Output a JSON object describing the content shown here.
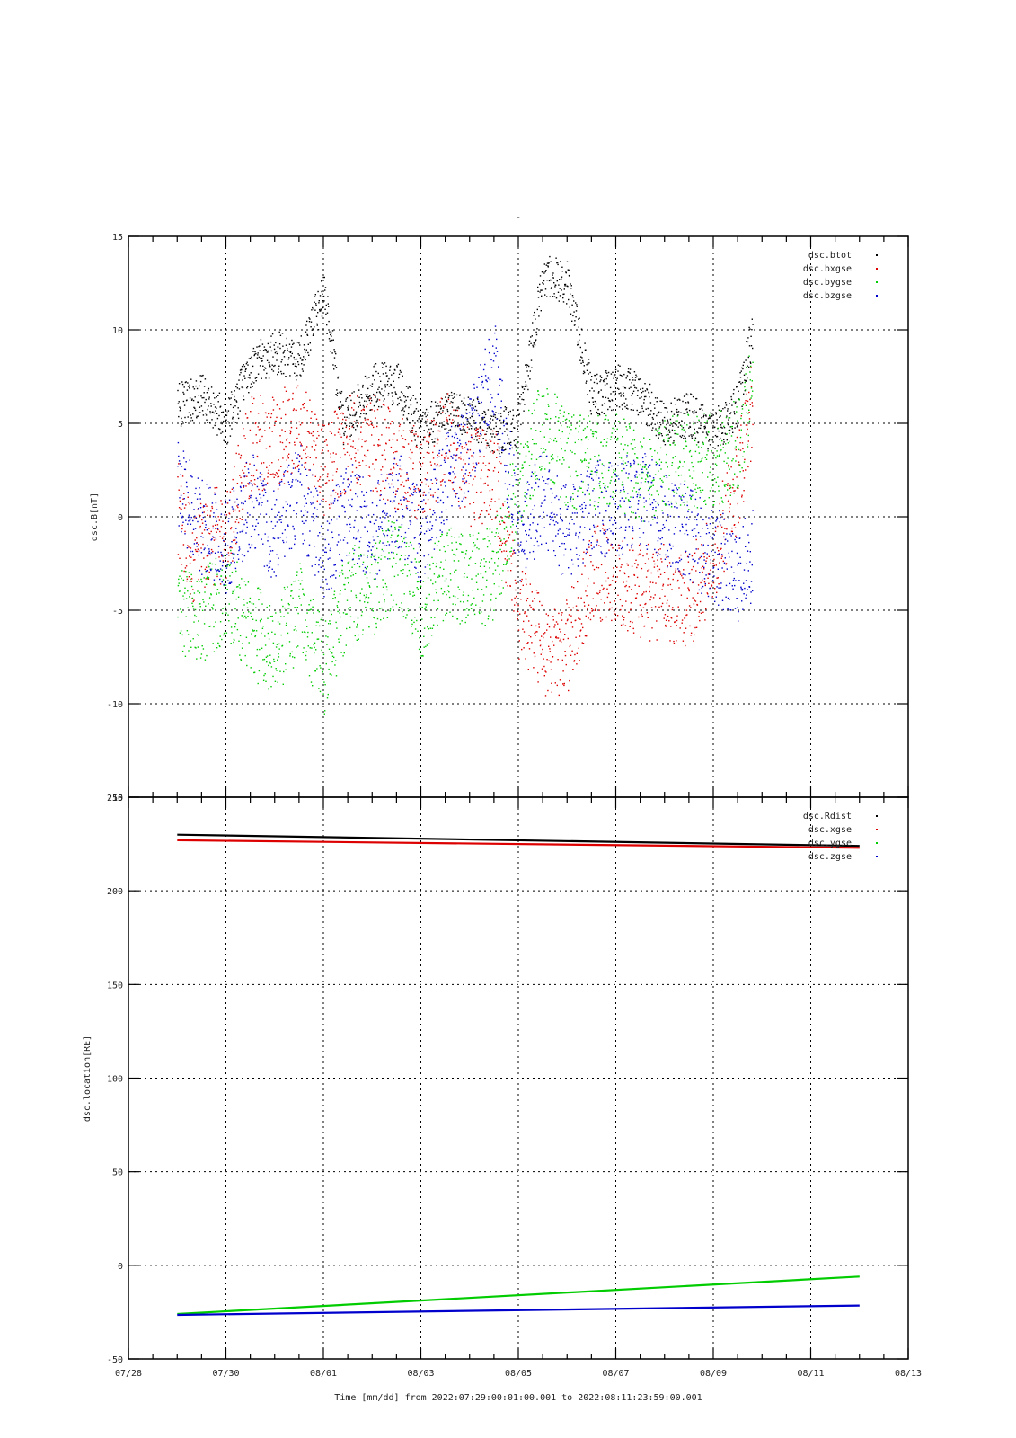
{
  "title_mark": "-",
  "chart_data": [
    {
      "type": "scatter",
      "ylabel": "dsc.B[nT]",
      "ylim": [
        -15,
        15
      ],
      "yticks": [
        -15,
        -10,
        -5,
        0,
        5,
        10,
        15
      ],
      "grid": true,
      "legend_placement": "top-right",
      "series": [
        {
          "name": "dsc.btot",
          "color": "#000000",
          "anchors": [
            [
              0.0,
              6.0
            ],
            [
              0.5,
              6.6
            ],
            [
              1.0,
              5.0
            ],
            [
              1.5,
              8.0
            ],
            [
              2.0,
              8.8
            ],
            [
              2.5,
              8.5
            ],
            [
              3.0,
              12.0
            ],
            [
              3.4,
              5.0
            ],
            [
              4.0,
              7.0
            ],
            [
              4.5,
              7.2
            ],
            [
              5.0,
              4.5
            ],
            [
              5.5,
              5.8
            ],
            [
              6.0,
              5.5
            ],
            [
              6.5,
              4.5
            ],
            [
              7.0,
              5.0
            ],
            [
              7.5,
              13.0
            ],
            [
              8.0,
              12.5
            ],
            [
              8.5,
              6.5
            ],
            [
              9.0,
              7.0
            ],
            [
              9.5,
              6.5
            ],
            [
              10.0,
              5.0
            ],
            [
              10.5,
              5.5
            ],
            [
              11.0,
              4.5
            ],
            [
              11.5,
              6.0
            ],
            [
              11.8,
              10.0
            ]
          ]
        },
        {
          "name": "dsc.bxgse",
          "color": "#dd0000",
          "anchors": [
            [
              0.0,
              0.5
            ],
            [
              0.3,
              -2.0
            ],
            [
              0.6,
              -1.0
            ],
            [
              1.0,
              -1.0
            ],
            [
              1.5,
              4.0
            ],
            [
              2.0,
              4.0
            ],
            [
              2.5,
              5.0
            ],
            [
              3.0,
              2.5
            ],
            [
              3.5,
              4.0
            ],
            [
              4.0,
              4.0
            ],
            [
              4.5,
              3.0
            ],
            [
              5.0,
              2.0
            ],
            [
              5.5,
              4.5
            ],
            [
              6.0,
              2.0
            ],
            [
              6.5,
              2.5
            ],
            [
              7.0,
              -5.0
            ],
            [
              7.5,
              -7.0
            ],
            [
              8.0,
              -7.0
            ],
            [
              8.5,
              -3.0
            ],
            [
              9.0,
              -3.0
            ],
            [
              9.5,
              -4.0
            ],
            [
              10.0,
              -4.0
            ],
            [
              10.5,
              -4.5
            ],
            [
              11.0,
              -2.0
            ],
            [
              11.5,
              2.0
            ],
            [
              11.8,
              6.0
            ]
          ]
        },
        {
          "name": "dsc.bygse",
          "color": "#00cc00",
          "anchors": [
            [
              0.0,
              -5.0
            ],
            [
              0.5,
              -5.5
            ],
            [
              1.0,
              -4.0
            ],
            [
              1.5,
              -6.0
            ],
            [
              2.0,
              -7.0
            ],
            [
              2.5,
              -5.0
            ],
            [
              3.0,
              -8.0
            ],
            [
              3.5,
              -4.0
            ],
            [
              4.0,
              -4.0
            ],
            [
              4.5,
              -2.0
            ],
            [
              5.0,
              -5.0
            ],
            [
              5.5,
              -3.0
            ],
            [
              6.0,
              -3.5
            ],
            [
              6.5,
              -3.0
            ],
            [
              7.0,
              2.0
            ],
            [
              7.5,
              5.0
            ],
            [
              8.0,
              3.0
            ],
            [
              8.5,
              3.0
            ],
            [
              9.0,
              3.0
            ],
            [
              9.5,
              2.0
            ],
            [
              10.0,
              3.0
            ],
            [
              10.5,
              3.0
            ],
            [
              11.0,
              3.0
            ],
            [
              11.5,
              4.0
            ],
            [
              11.8,
              7.0
            ]
          ]
        },
        {
          "name": "dsc.bzgse",
          "color": "#0000cc",
          "anchors": [
            [
              0.0,
              1.5
            ],
            [
              0.5,
              -0.5
            ],
            [
              1.0,
              -1.5
            ],
            [
              1.5,
              1.0
            ],
            [
              2.0,
              -1.0
            ],
            [
              2.5,
              1.5
            ],
            [
              3.0,
              -2.0
            ],
            [
              3.5,
              0.5
            ],
            [
              4.0,
              -1.0
            ],
            [
              4.5,
              1.0
            ],
            [
              5.0,
              -1.0
            ],
            [
              5.5,
              2.0
            ],
            [
              6.0,
              4.0
            ],
            [
              6.5,
              8.0
            ],
            [
              7.0,
              -1.0
            ],
            [
              7.5,
              1.0
            ],
            [
              8.0,
              -1.0
            ],
            [
              8.5,
              0.5
            ],
            [
              9.0,
              0.5
            ],
            [
              9.5,
              1.0
            ],
            [
              10.0,
              0.0
            ],
            [
              10.5,
              -1.0
            ],
            [
              11.0,
              -2.0
            ],
            [
              11.5,
              -3.0
            ],
            [
              11.8,
              -2.0
            ]
          ]
        }
      ]
    },
    {
      "type": "line",
      "ylabel": "dsc.location[RE]",
      "ylim": [
        -50,
        250
      ],
      "yticks": [
        -50,
        0,
        50,
        100,
        150,
        200,
        250
      ],
      "grid": true,
      "legend_placement": "top-right",
      "series": [
        {
          "name": "dsc.Rdist",
          "color": "#000000",
          "x": [
            0,
            14
          ],
          "values": [
            230.0,
            224.0
          ]
        },
        {
          "name": "dsc.xgse",
          "color": "#dd0000",
          "x": [
            0,
            14
          ],
          "values": [
            227.0,
            223.0
          ]
        },
        {
          "name": "dsc.ygse",
          "color": "#00cc00",
          "x": [
            0,
            14
          ],
          "values": [
            -26.0,
            -6.0
          ]
        },
        {
          "name": "dsc.zgse",
          "color": "#0000cc",
          "x": [
            0,
            14
          ],
          "values": [
            -26.5,
            -21.5
          ]
        }
      ]
    }
  ],
  "x_axis": {
    "range_days": [
      -1,
      15
    ],
    "tick_labels": [
      "07/28",
      "07/30",
      "08/01",
      "08/03",
      "08/05",
      "08/07",
      "08/09",
      "08/11",
      "08/13"
    ],
    "xlabel": "Time [mm/dd]  from 2022:07:29:00:01:00.001  to  2022:08:11:23:59:00.001"
  }
}
